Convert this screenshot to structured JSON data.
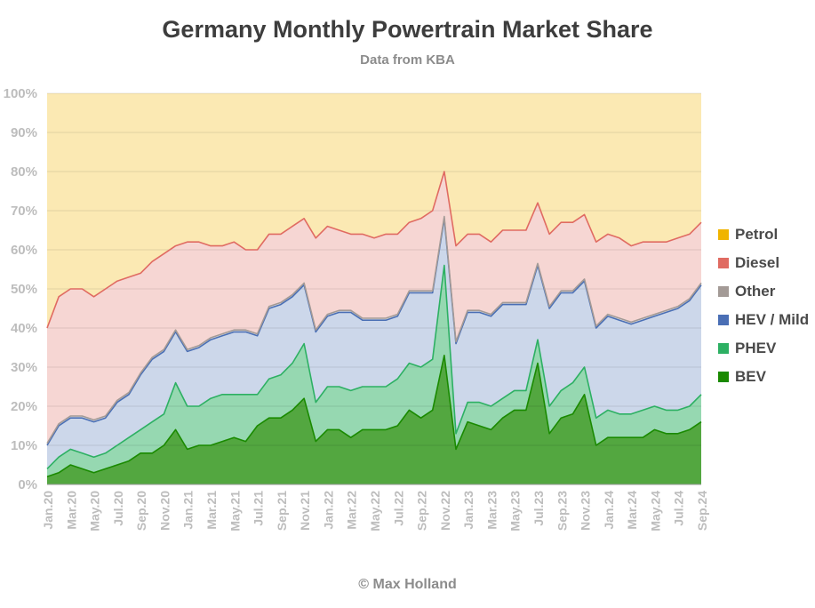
{
  "title": "Germany Monthly Powertrain Market Share",
  "subtitle": "Data from KBA",
  "credit": "© Max Holland",
  "chart_data": {
    "type": "area",
    "stacked": true,
    "title": "Germany Monthly Powertrain Market Share",
    "subtitle": "Data from KBA",
    "xlabel": "",
    "ylabel": "",
    "ylim": [
      0,
      100
    ],
    "grid": true,
    "legend_position": "right",
    "y_ticks": [
      "0%",
      "10%",
      "20%",
      "30%",
      "40%",
      "50%",
      "60%",
      "70%",
      "80%",
      "90%",
      "100%"
    ],
    "x_tick_labels": [
      "Jan.20",
      "Mar.20",
      "May.20",
      "Jul.20",
      "Sep.20",
      "Nov.20",
      "Jan.21",
      "Mar.21",
      "May.21",
      "Jul.21",
      "Sep.21",
      "Nov.21",
      "Jan.22",
      "Mar.22",
      "May.22",
      "Jul.22",
      "Sep.22",
      "Nov.22",
      "Jan.23",
      "Mar.23",
      "May.23",
      "Jul.23",
      "Sep.23",
      "Nov.23",
      "Jan.24",
      "Mar.24",
      "May.24",
      "Jul.24",
      "Sep.24"
    ],
    "categories": [
      "Jan.20",
      "Feb.20",
      "Mar.20",
      "Apr.20",
      "May.20",
      "Jun.20",
      "Jul.20",
      "Aug.20",
      "Sep.20",
      "Oct.20",
      "Nov.20",
      "Dec.20",
      "Jan.21",
      "Feb.21",
      "Mar.21",
      "Apr.21",
      "May.21",
      "Jun.21",
      "Jul.21",
      "Aug.21",
      "Sep.21",
      "Oct.21",
      "Nov.21",
      "Dec.21",
      "Jan.22",
      "Feb.22",
      "Mar.22",
      "Apr.22",
      "May.22",
      "Jun.22",
      "Jul.22",
      "Aug.22",
      "Sep.22",
      "Oct.22",
      "Nov.22",
      "Dec.22",
      "Jan.23",
      "Feb.23",
      "Mar.23",
      "Apr.23",
      "May.23",
      "Jun.23",
      "Jul.23",
      "Aug.23",
      "Sep.23",
      "Oct.23",
      "Nov.23",
      "Dec.23",
      "Jan.24",
      "Feb.24",
      "Mar.24",
      "Apr.24",
      "May.24",
      "Jun.24",
      "Jul.24",
      "Aug.24",
      "Sep.24"
    ],
    "series": [
      {
        "name": "BEV",
        "color": "#1a8a00",
        "values": [
          2,
          3,
          5,
          4,
          3,
          4,
          5,
          6,
          8,
          8,
          10,
          14,
          9,
          10,
          10,
          11,
          12,
          11,
          15,
          17,
          17,
          19,
          22,
          11,
          14,
          14,
          12,
          14,
          14,
          14,
          15,
          19,
          17,
          19,
          33,
          9,
          16,
          15,
          14,
          17,
          19,
          19,
          31,
          13,
          17,
          18,
          23,
          10,
          12,
          12,
          12,
          12,
          14,
          13,
          13,
          14,
          16
        ]
      },
      {
        "name": "PHEV",
        "color": "#2db063",
        "values": [
          2,
          4,
          4,
          4,
          4,
          4,
          5,
          6,
          6,
          8,
          8,
          12,
          11,
          10,
          12,
          12,
          11,
          12,
          8,
          10,
          11,
          12,
          14,
          10,
          11,
          11,
          12,
          11,
          11,
          11,
          12,
          12,
          13,
          13,
          23,
          4,
          5,
          6,
          6,
          5,
          5,
          5,
          6,
          7,
          7,
          8,
          7,
          7,
          7,
          6,
          6,
          7,
          6,
          6,
          6,
          6,
          7
        ]
      },
      {
        "name": "HEV / Mild",
        "color": "#4a6fb5",
        "values": [
          6,
          8,
          8,
          9,
          9,
          9,
          11,
          11,
          14,
          16,
          16,
          13,
          14,
          15,
          15,
          15,
          16,
          16,
          15,
          18,
          18,
          17,
          15,
          18,
          18,
          19,
          20,
          17,
          17,
          17,
          16,
          18,
          19,
          17,
          12,
          23,
          23,
          23,
          23,
          24,
          22,
          22,
          19,
          25,
          25,
          23,
          22,
          23,
          24,
          24,
          23,
          23,
          23,
          25,
          26,
          27,
          28
        ]
      },
      {
        "name": "Other",
        "color": "#a39a96",
        "values": [
          0.5,
          0.5,
          0.5,
          0.5,
          0.5,
          0.5,
          0.5,
          0.5,
          0.5,
          0.5,
          0.5,
          0.5,
          0.5,
          0.5,
          0.5,
          0.5,
          0.5,
          0.5,
          0.5,
          0.5,
          0.5,
          0.5,
          0.5,
          0.5,
          0.5,
          0.5,
          0.5,
          0.5,
          0.5,
          0.5,
          0.5,
          0.5,
          0.5,
          0.5,
          0.5,
          0.5,
          0.5,
          0.5,
          0.5,
          0.5,
          0.5,
          0.5,
          0.5,
          0.5,
          0.5,
          0.5,
          0.5,
          0.5,
          0.5,
          0.5,
          0.5,
          0.5,
          0.5,
          0.5,
          0.5,
          0.5,
          0.5
        ]
      },
      {
        "name": "Diesel",
        "color": "#e06b62",
        "values": [
          29.5,
          32.5,
          32.5,
          32.5,
          31.5,
          32.5,
          30.5,
          29.5,
          25.5,
          24.5,
          24.5,
          21.5,
          27.5,
          26.5,
          23.5,
          22.5,
          22.5,
          20.5,
          21.5,
          18.5,
          17.5,
          17.5,
          16.5,
          23.5,
          22.5,
          20.5,
          19.5,
          21.5,
          20.5,
          21.5,
          20.5,
          17.5,
          18.5,
          20.5,
          11.5,
          24.5,
          19.5,
          19.5,
          18.5,
          18.5,
          18.5,
          18.5,
          15.5,
          18.5,
          17.5,
          17.5,
          16.5,
          21.5,
          20.5,
          20.5,
          19.5,
          19.5,
          18.5,
          17.5,
          17.5,
          16.5,
          15.5
        ]
      },
      {
        "name": "Petrol",
        "color": "#f0b400",
        "values": [
          60,
          52,
          50,
          50,
          52,
          50,
          48,
          47,
          46,
          43,
          41,
          39,
          38,
          38,
          39,
          39,
          38,
          40,
          40,
          36,
          36,
          34,
          32,
          37,
          34,
          35,
          36,
          36,
          37,
          36,
          36,
          33,
          32,
          30,
          20,
          39,
          36,
          36,
          38,
          35,
          35,
          35,
          28,
          36,
          33,
          33,
          31,
          38,
          36,
          37,
          39,
          38,
          38,
          38,
          37,
          36,
          33
        ]
      }
    ]
  }
}
